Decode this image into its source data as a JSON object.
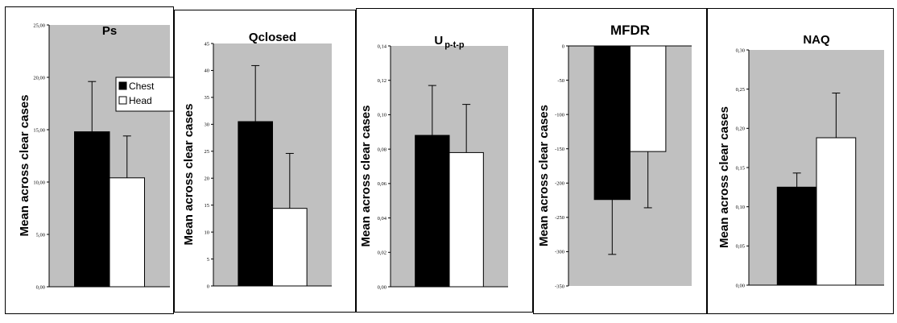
{
  "colors": {
    "plot_bg": "#c0c0c0",
    "chest": "#000000",
    "head": "#ffffff",
    "axis": "#000000"
  },
  "legend": {
    "placement": "top-right",
    "entries": [
      "Chest",
      "Head"
    ]
  },
  "chart_data": [
    {
      "type": "bar",
      "title": "Ps",
      "title_subscript": "",
      "ylabel": "Mean across clear cases",
      "categories": [
        "Chest",
        "Head"
      ],
      "values": [
        14.8,
        10.4
      ],
      "errors": [
        4.8,
        4.0
      ],
      "ylim": [
        0,
        25
      ],
      "yticks": [
        0,
        5,
        10,
        15,
        20,
        25
      ],
      "ytick_labels": [
        "0,00",
        "5,00",
        "10,00",
        "15,00",
        "20,00",
        "25,00"
      ]
    },
    {
      "type": "bar",
      "title": "Qclosed",
      "title_subscript": "",
      "ylabel": "Mean across clear cases",
      "categories": [
        "Chest",
        "Head"
      ],
      "values": [
        30.5,
        14.4
      ],
      "errors": [
        10.4,
        10.2
      ],
      "ylim": [
        0,
        45
      ],
      "yticks": [
        0,
        5,
        10,
        15,
        20,
        25,
        30,
        35,
        40,
        45
      ],
      "ytick_labels": [
        "0",
        "5",
        "10",
        "15",
        "20",
        "25",
        "30",
        "35",
        "40",
        "45"
      ]
    },
    {
      "type": "bar",
      "title": "U",
      "title_subscript": "p-t-p",
      "ylabel": "Mean across clear cases",
      "categories": [
        "Chest",
        "Head"
      ],
      "values": [
        0.088,
        0.078
      ],
      "errors": [
        0.029,
        0.028
      ],
      "ylim": [
        0,
        0.14
      ],
      "yticks": [
        0,
        0.02,
        0.04,
        0.06,
        0.08,
        0.1,
        0.12,
        0.14
      ],
      "ytick_labels": [
        "0,00",
        "0,02",
        "0,04",
        "0,06",
        "0,08",
        "0,10",
        "0,12",
        "0,14"
      ]
    },
    {
      "type": "bar",
      "title": "MFDR",
      "title_subscript": "",
      "ylabel": "Mean across clear cases",
      "categories": [
        "Chest",
        "Head"
      ],
      "values": [
        -224,
        -154
      ],
      "errors": [
        80,
        82
      ],
      "ylim": [
        -350,
        0
      ],
      "yticks": [
        0,
        -50,
        -100,
        -150,
        -200,
        -250,
        -300,
        -350
      ],
      "ytick_labels": [
        "0",
        "-50",
        "-100",
        "-150",
        "-200",
        "-250",
        "-300",
        "-350"
      ]
    },
    {
      "type": "bar",
      "title": "NAQ",
      "title_subscript": "",
      "ylabel": "Mean across clear cases",
      "categories": [
        "Chest",
        "Head"
      ],
      "values": [
        0.125,
        0.188
      ],
      "errors": [
        0.018,
        0.057
      ],
      "ylim": [
        0,
        0.3
      ],
      "yticks": [
        0,
        0.05,
        0.1,
        0.15,
        0.2,
        0.25,
        0.3
      ],
      "ytick_labels": [
        "0,00",
        "0,05",
        "0,10",
        "0,15",
        "0,20",
        "0,25",
        "0,30"
      ]
    }
  ]
}
